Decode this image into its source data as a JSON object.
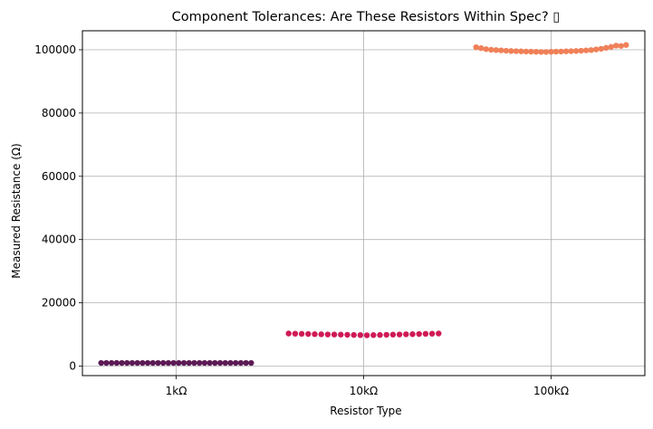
{
  "chart_data": {
    "type": "scatter",
    "title": "Component Tolerances: Are These Resistors Within Spec? ▯",
    "xlabel": "Resistor Type",
    "ylabel": "Measured Resistance (Ω)",
    "categories": [
      "1kΩ",
      "10kΩ",
      "100kΩ"
    ],
    "ylim": [
      -3000,
      106000
    ],
    "yticks": [
      0,
      20000,
      40000,
      60000,
      80000,
      100000
    ],
    "grid": true,
    "colors": [
      "#5c1a55",
      "#cf1a55",
      "#f08058"
    ],
    "series": [
      {
        "category": "1kΩ",
        "values": [
          1000,
          1000,
          1000,
          1000,
          1000,
          1000,
          1000,
          1000,
          1000,
          1000,
          1000,
          1000,
          1000,
          1000,
          1000,
          1000,
          1000,
          1000,
          1000,
          1000,
          1000,
          1000,
          1000,
          1000,
          1000,
          1000,
          1000,
          1000,
          1000,
          1000
        ]
      },
      {
        "category": "10kΩ",
        "values": [
          10300,
          10250,
          10200,
          10150,
          10100,
          10050,
          10000,
          9980,
          9950,
          9900,
          9850,
          9800,
          9750,
          9800,
          9850,
          9900,
          9950,
          10000,
          10050,
          10100,
          10150,
          10200,
          10250,
          10300
        ]
      },
      {
        "category": "100kΩ",
        "values": [
          100800,
          100500,
          100200,
          100000,
          99900,
          99800,
          99700,
          99600,
          99550,
          99500,
          99450,
          99400,
          99350,
          99300,
          99300,
          99350,
          99400,
          99450,
          99500,
          99550,
          99600,
          99700,
          99800,
          99900,
          100100,
          100300,
          100600,
          100900,
          101300,
          101200,
          101500
        ]
      }
    ]
  }
}
